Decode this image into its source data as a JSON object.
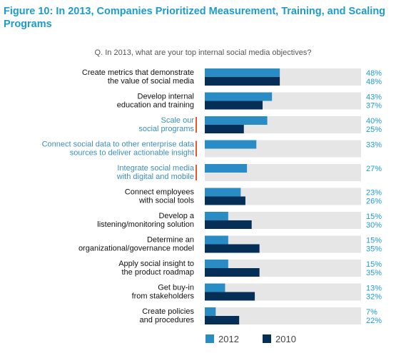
{
  "header": {
    "title": "Figure 10: In 2013, Companies Prioritized Measurement, Training, and Scaling Programs",
    "question": "Q. In 2013, what are your top internal social media objectives?"
  },
  "colors": {
    "series_2012": "#2a8cc4",
    "series_2010": "#062f57",
    "track": "#e6e6e6",
    "label_default": "#111111",
    "label_highlight": "#3a8fbd",
    "accent_bar": "#e8572a",
    "value_text": "#1d9bd1"
  },
  "chart_data": {
    "type": "bar",
    "orientation": "horizontal",
    "xlim": [
      0,
      100
    ],
    "categories": [
      [
        "Create metrics that demonstrate",
        "the value of social media"
      ],
      [
        "Develop internal",
        "education and training"
      ],
      [
        "Scale our",
        "social programs"
      ],
      [
        "Connect social data to other enterprise data",
        "sources to deliver actionable insight"
      ],
      [
        "Integrate social media",
        "with digital and mobile"
      ],
      [
        "Connect employees",
        "with social tools"
      ],
      [
        "Develop a",
        "listening/monitoring solution"
      ],
      [
        "Determine an",
        "organizational/governance model"
      ],
      [
        "Apply social insight to",
        "the product roadmap"
      ],
      [
        "Get buy-in",
        "from stakeholders"
      ],
      [
        "Create policies",
        "and procedures"
      ]
    ],
    "highlighted": [
      false,
      false,
      true,
      true,
      true,
      false,
      false,
      false,
      false,
      false,
      false
    ],
    "series": [
      {
        "name": "2012",
        "values": [
          48,
          43,
          40,
          33,
          27,
          23,
          15,
          15,
          15,
          13,
          7
        ]
      },
      {
        "name": "2010",
        "values": [
          48,
          37,
          25,
          null,
          null,
          26,
          30,
          35,
          35,
          32,
          22
        ]
      }
    ],
    "legend_position": "bottom"
  }
}
